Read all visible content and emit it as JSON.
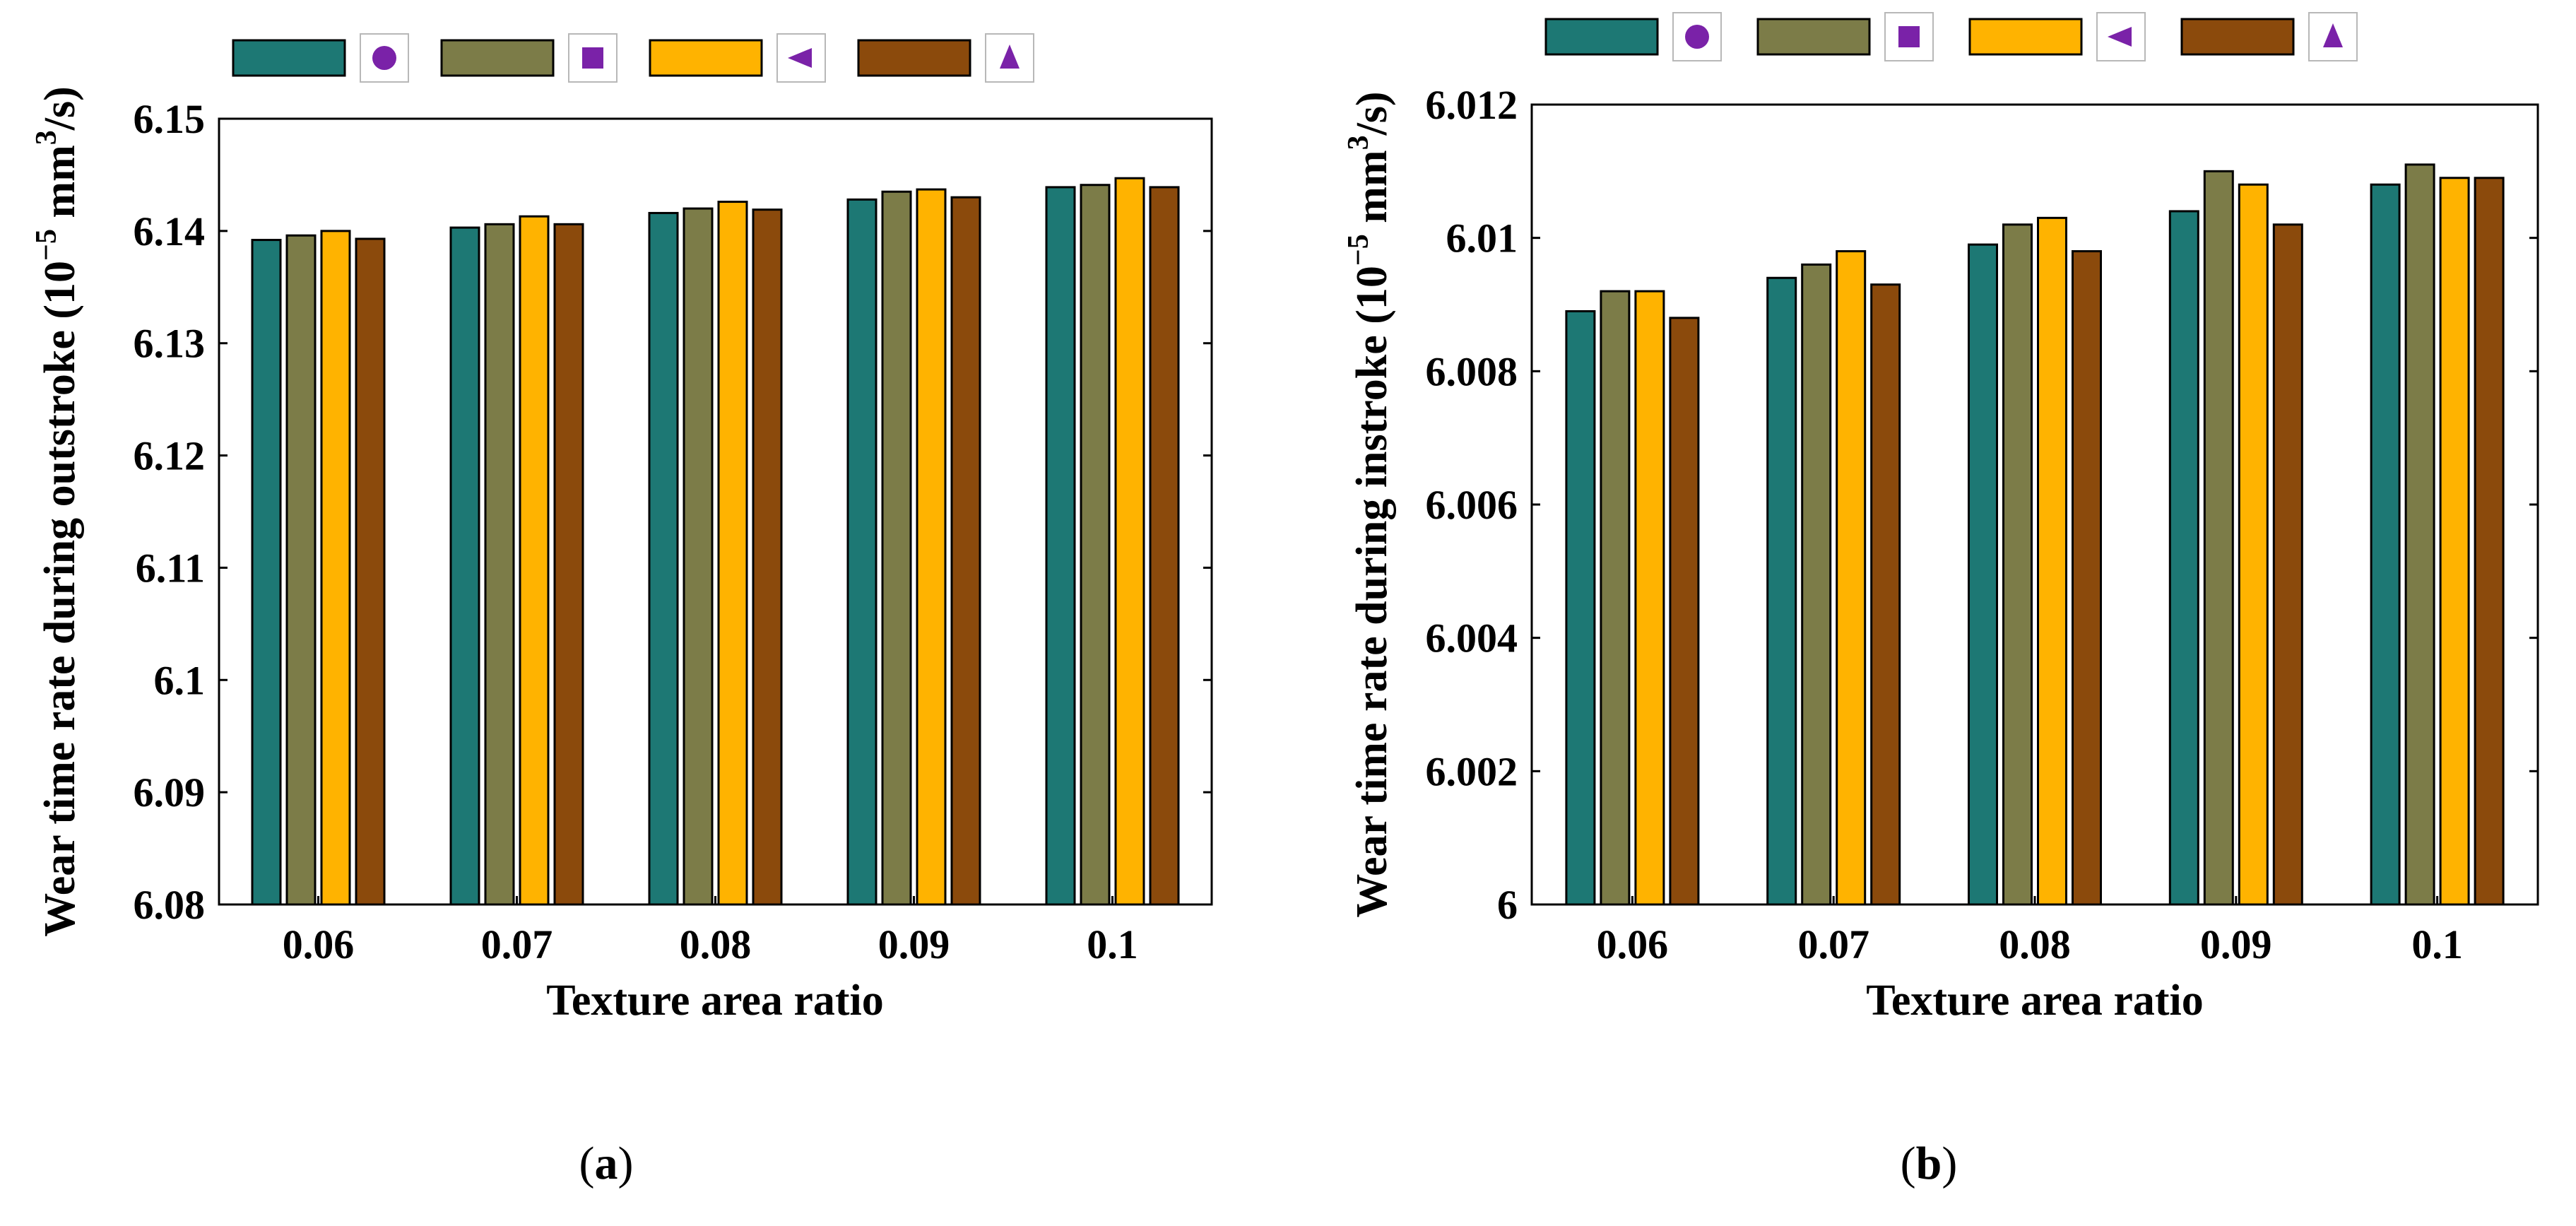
{
  "colors": {
    "series": [
      "#1d7874",
      "#7c7c48",
      "#ffb300",
      "#8b4a0c"
    ],
    "marker": "#7a22a8"
  },
  "legend_markers": [
    "circle-icon",
    "square-icon",
    "left-triangle-icon",
    "up-triangle-icon"
  ],
  "chart_data": [
    {
      "panel_label": "a",
      "type": "bar",
      "xlabel": "Texture area ratio",
      "ylabel_text": "Wear time rate during outstroke (10",
      "ylabel_exp": "−5",
      "ylabel_unit": " mm",
      "ylabel_unit_exp": "3",
      "ylabel_end": "/s)",
      "categories": [
        "0.06",
        "0.07",
        "0.08",
        "0.09",
        "0.1"
      ],
      "ylim": [
        6.08,
        6.15
      ],
      "yticks": [
        "6.08",
        "6.09",
        "6.1",
        "6.11",
        "6.12",
        "6.13",
        "6.14",
        "6.15"
      ],
      "series": [
        {
          "values": [
            6.1392,
            6.1403,
            6.1416,
            6.1428,
            6.1439
          ]
        },
        {
          "values": [
            6.1396,
            6.1406,
            6.142,
            6.1435,
            6.1441
          ]
        },
        {
          "values": [
            6.14,
            6.1413,
            6.1426,
            6.1437,
            6.1447
          ]
        },
        {
          "values": [
            6.1393,
            6.1406,
            6.1419,
            6.143,
            6.1439
          ]
        }
      ]
    },
    {
      "panel_label": "b",
      "type": "bar",
      "xlabel": "Texture area ratio",
      "ylabel_text": "Wear time rate during instroke (10",
      "ylabel_exp": "−5",
      "ylabel_unit": " mm",
      "ylabel_unit_exp": "3",
      "ylabel_end": "/s)",
      "categories": [
        "0.06",
        "0.07",
        "0.08",
        "0.09",
        "0.1"
      ],
      "ylim": [
        6.0,
        6.012
      ],
      "yticks": [
        "6",
        "6.002",
        "6.004",
        "6.006",
        "6.008",
        "6.01",
        "6.012"
      ],
      "series": [
        {
          "values": [
            6.0089,
            6.0094,
            6.0099,
            6.0104,
            6.0108
          ]
        },
        {
          "values": [
            6.0092,
            6.0096,
            6.0102,
            6.011,
            6.0111
          ]
        },
        {
          "values": [
            6.0092,
            6.0098,
            6.0103,
            6.0108,
            6.0109
          ]
        },
        {
          "values": [
            6.0088,
            6.0093,
            6.0098,
            6.0102,
            6.0109
          ]
        }
      ]
    }
  ]
}
